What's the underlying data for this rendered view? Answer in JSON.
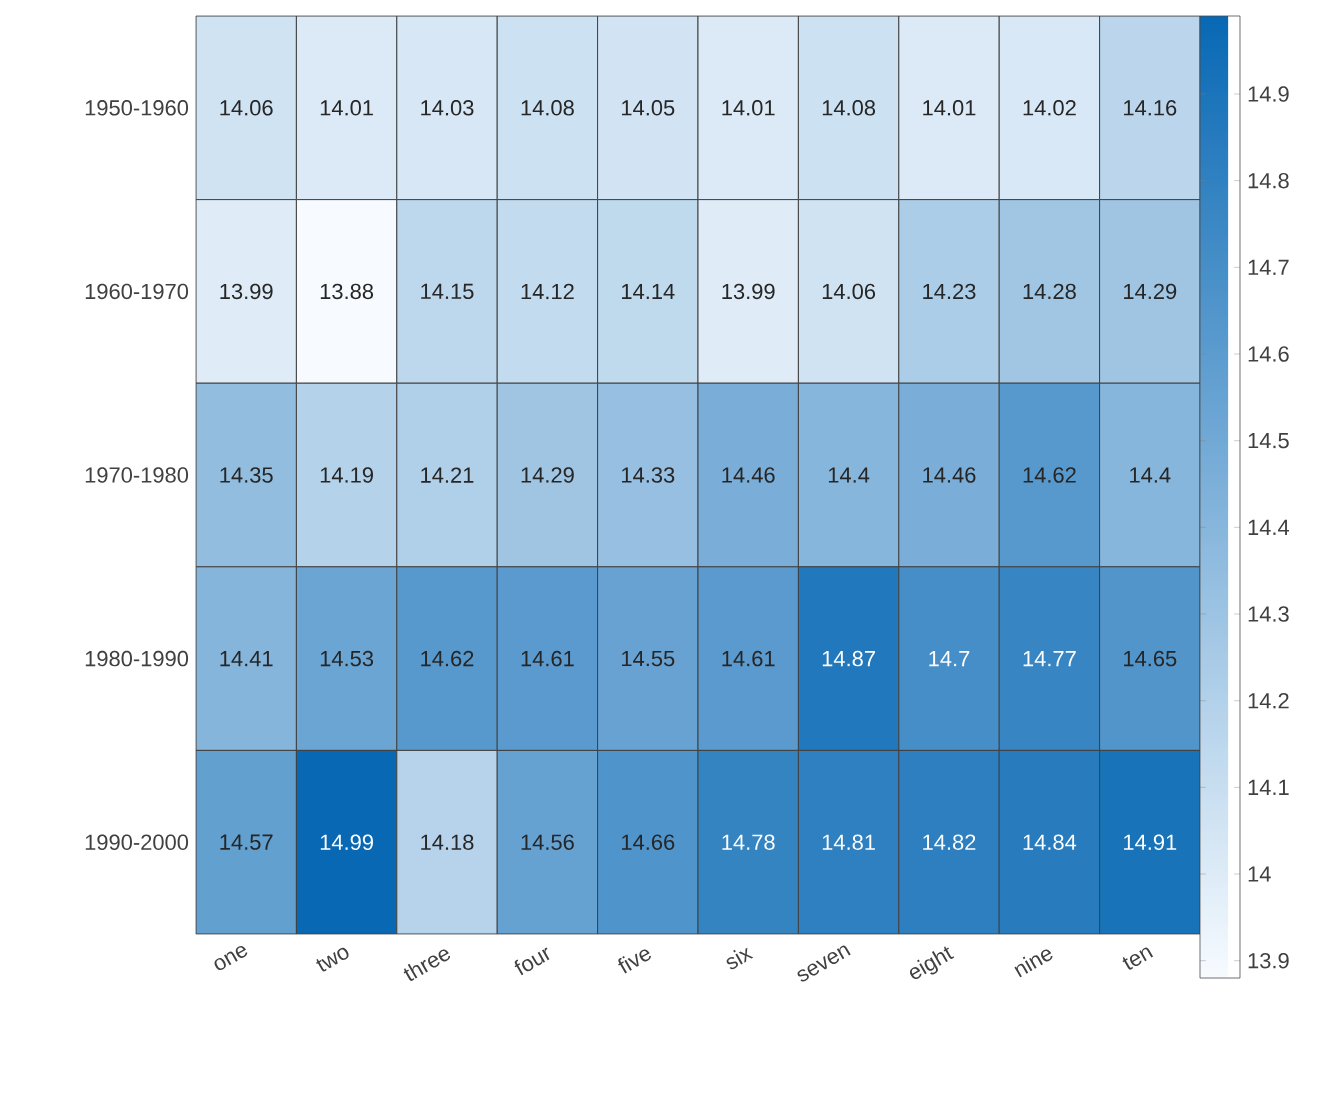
{
  "chart_data": {
    "type": "heatmap",
    "categories": [
      "one",
      "two",
      "three",
      "four",
      "five",
      "six",
      "seven",
      "eight",
      "nine",
      "ten"
    ],
    "y_categories": [
      "1950-1960",
      "1960-1970",
      "1970-1980",
      "1980-1990",
      "1990-2000"
    ],
    "cells": [
      [
        14.06,
        14.01,
        14.03,
        14.08,
        14.05,
        14.01,
        14.08,
        14.01,
        14.02,
        14.16
      ],
      [
        13.99,
        13.88,
        14.15,
        14.12,
        14.14,
        13.99,
        14.06,
        14.23,
        14.28,
        14.29
      ],
      [
        14.35,
        14.19,
        14.21,
        14.29,
        14.33,
        14.46,
        14.4,
        14.46,
        14.62,
        14.4
      ],
      [
        14.41,
        14.53,
        14.62,
        14.61,
        14.55,
        14.61,
        14.87,
        14.7,
        14.77,
        14.65
      ],
      [
        14.57,
        14.99,
        14.18,
        14.56,
        14.66,
        14.78,
        14.81,
        14.82,
        14.84,
        14.91
      ]
    ],
    "clim": [
      13.88,
      14.99
    ],
    "cticks": [
      13.9,
      {
        "value": 14,
        "label": "14"
      },
      14.1,
      14.2,
      14.3,
      14.4,
      14.5,
      14.6,
      14.7,
      14.8,
      14.9
    ],
    "data_labels": true
  }
}
